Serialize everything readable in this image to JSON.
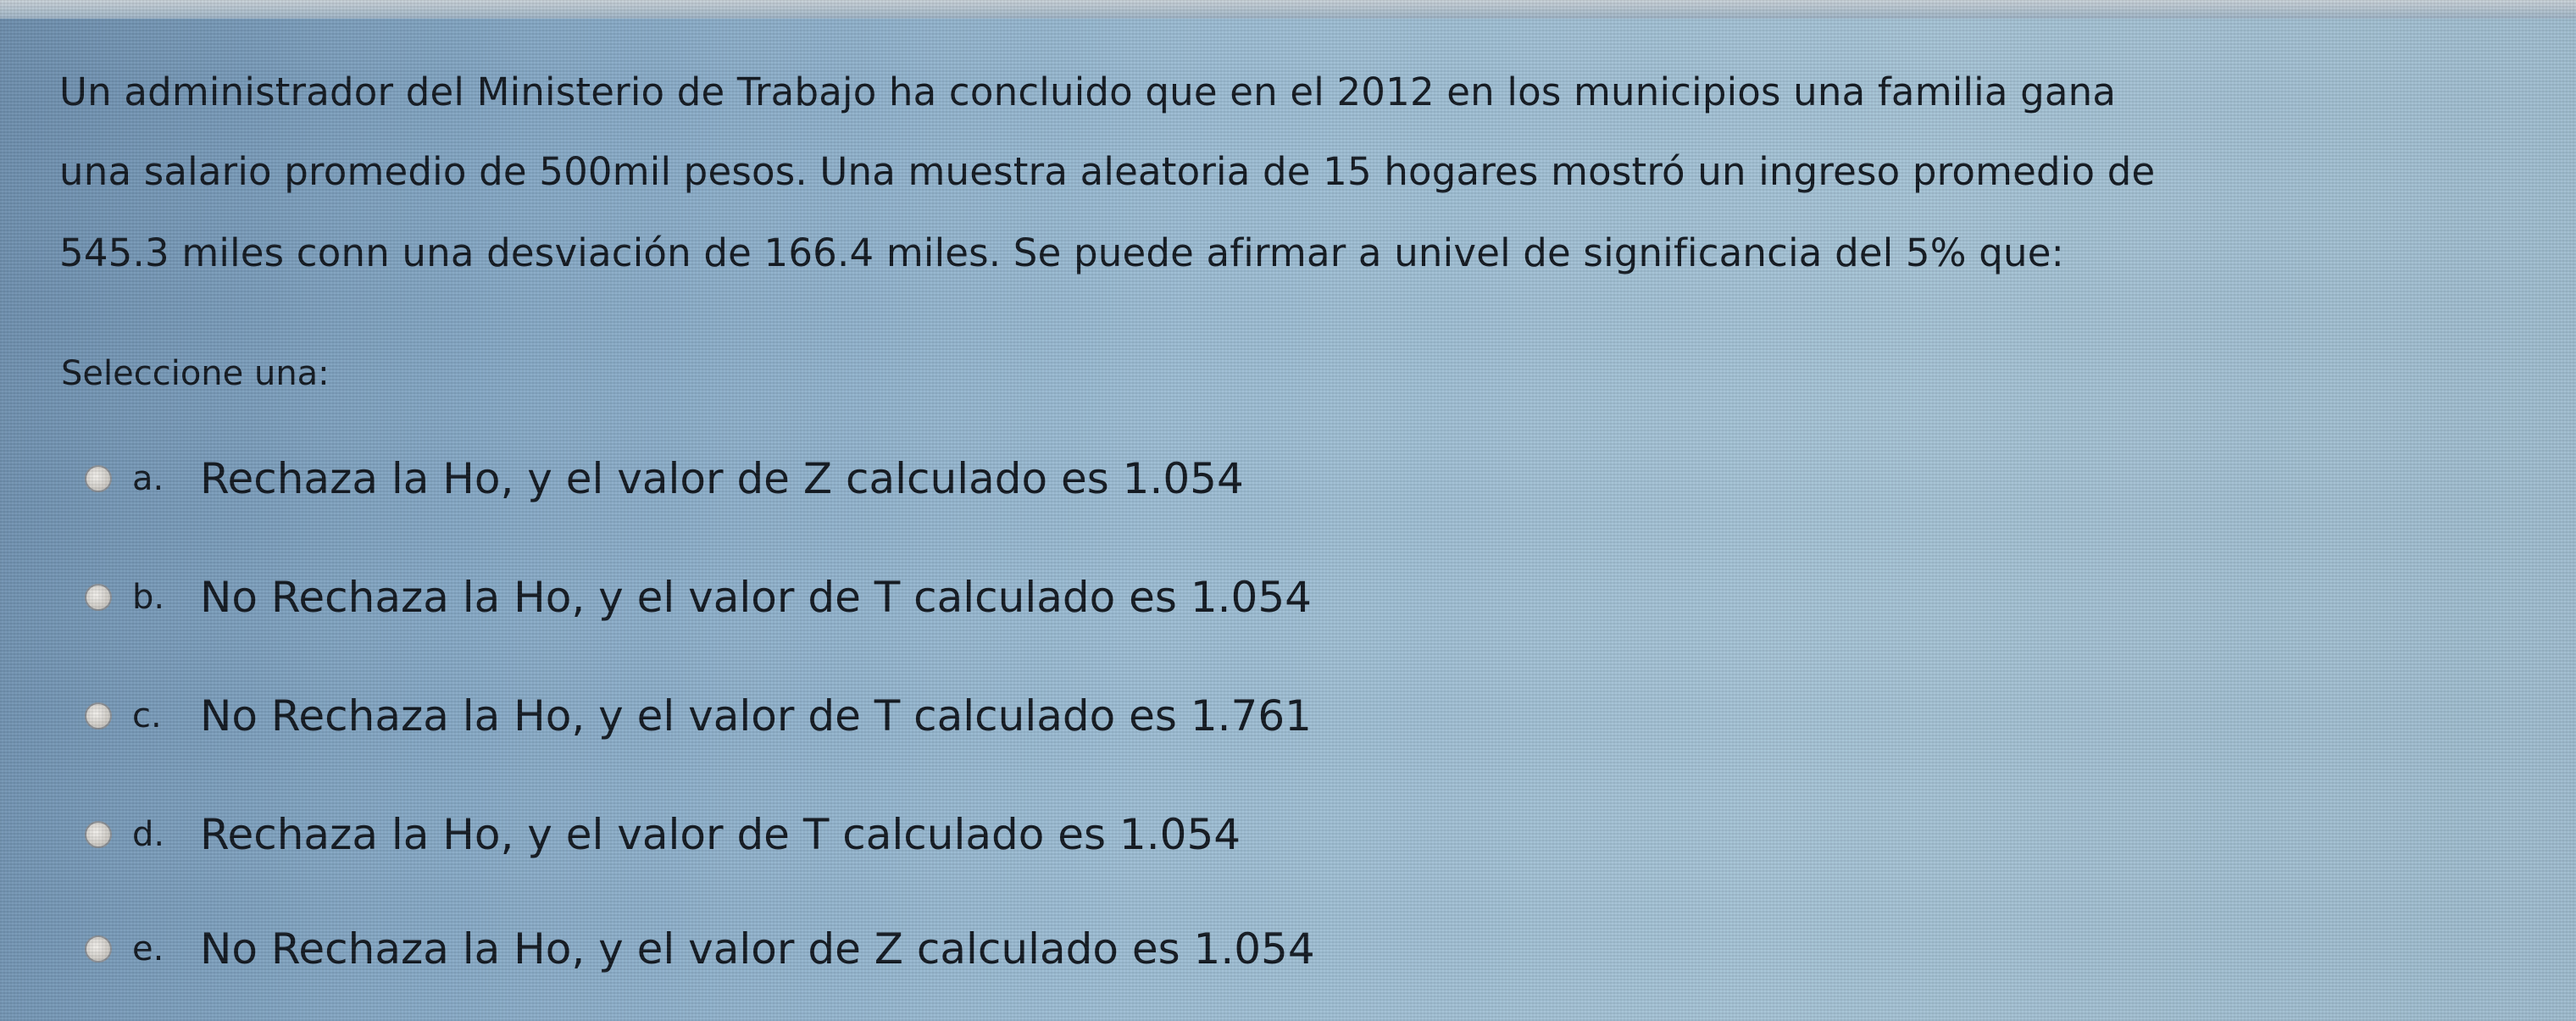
{
  "question": {
    "lines": [
      "Un administrador del Ministerio de Trabajo ha concluido que en el 2012 en los municipios una familia gana",
      "una salario promedio de 500mil pesos. Una muestra aleatoria de 15 hogares mostró un ingreso promedio de",
      "545.3 miles conn una desviación de 166.4 miles. Se puede afirmar a univel de significancia del 5% que:"
    ]
  },
  "prompt": "Seleccione una:",
  "options": [
    {
      "letter": "a.",
      "text": "Rechaza la Ho, y el valor de Z calculado es 1.054"
    },
    {
      "letter": "b.",
      "text": "No Rechaza la Ho, y el valor de T calculado es 1.054"
    },
    {
      "letter": "c.",
      "text": "No Rechaza la Ho, y el valor de T calculado es 1.761"
    },
    {
      "letter": "d.",
      "text": "Rechaza la Ho, y el valor de T calculado es 1.054"
    },
    {
      "letter": "e.",
      "text": "No Rechaza la Ho, y el valor de Z calculado es 1.054"
    }
  ],
  "colors": {
    "background": "#9dbdd4",
    "text": "#141a22"
  }
}
